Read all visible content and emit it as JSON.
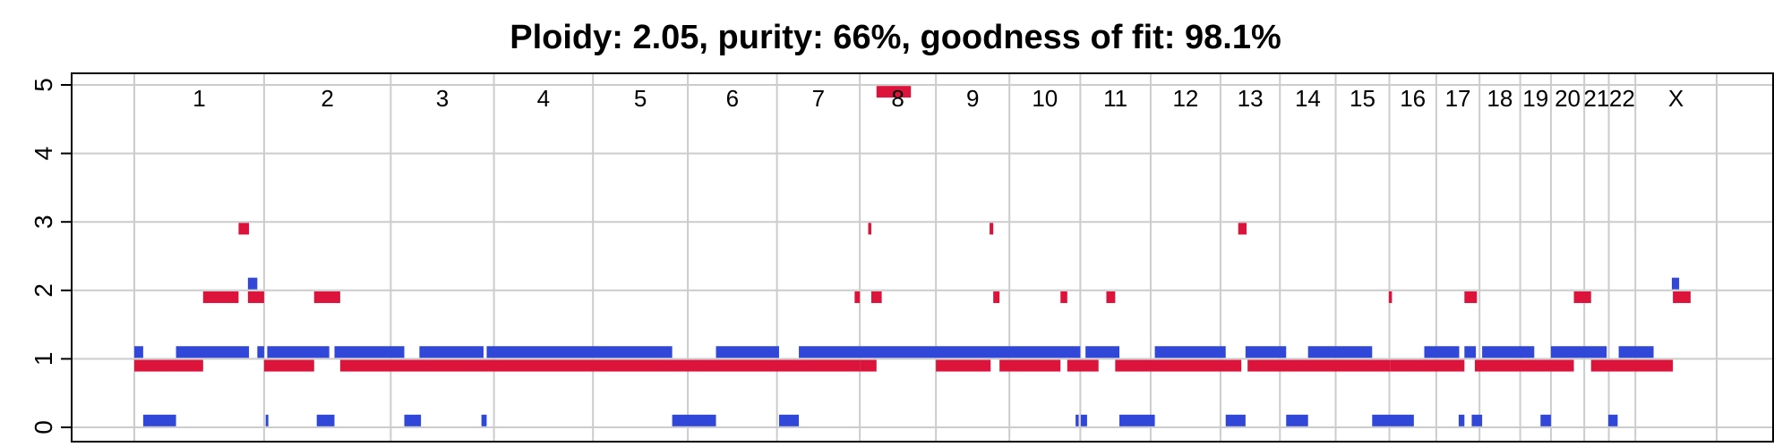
{
  "chart_data": {
    "type": "segment",
    "title": "Ploidy: 2.05, purity: 66%, goodness of fit: 98.1%",
    "ylim": [
      0,
      5
    ],
    "yticks": [
      "0",
      "1",
      "2",
      "3",
      "4",
      "5"
    ],
    "grid": true,
    "chromosomes": [
      {
        "label": "1",
        "start": 0,
        "end": 249
      },
      {
        "label": "2",
        "start": 249,
        "end": 492
      },
      {
        "label": "3",
        "start": 492,
        "end": 690
      },
      {
        "label": "4",
        "start": 690,
        "end": 880
      },
      {
        "label": "5",
        "start": 880,
        "end": 1062
      },
      {
        "label": "6",
        "start": 1062,
        "end": 1233
      },
      {
        "label": "7",
        "start": 1233,
        "end": 1392
      },
      {
        "label": "8",
        "start": 1392,
        "end": 1538
      },
      {
        "label": "9",
        "start": 1538,
        "end": 1679
      },
      {
        "label": "10",
        "start": 1679,
        "end": 1815
      },
      {
        "label": "11",
        "start": 1815,
        "end": 1950
      },
      {
        "label": "12",
        "start": 1950,
        "end": 2084
      },
      {
        "label": "13",
        "start": 2084,
        "end": 2198
      },
      {
        "label": "14",
        "start": 2198,
        "end": 2305
      },
      {
        "label": "15",
        "start": 2305,
        "end": 2408
      },
      {
        "label": "16",
        "start": 2408,
        "end": 2498
      },
      {
        "label": "17",
        "start": 2498,
        "end": 2581
      },
      {
        "label": "18",
        "start": 2581,
        "end": 2659
      },
      {
        "label": "19",
        "start": 2659,
        "end": 2718
      },
      {
        "label": "20",
        "start": 2718,
        "end": 2782
      },
      {
        "label": "21",
        "start": 2782,
        "end": 2829
      },
      {
        "label": "22",
        "start": 2829,
        "end": 2880
      },
      {
        "label": "X",
        "start": 2880,
        "end": 3036
      }
    ],
    "series": [
      {
        "color": "#dc143c",
        "segments": [
          [
            0,
            132,
            0.9
          ],
          [
            132,
            200,
            1.9
          ],
          [
            200,
            220,
            2.9
          ],
          [
            218,
            249,
            1.9
          ],
          [
            249,
            345,
            0.9
          ],
          [
            345,
            395,
            1.9
          ],
          [
            395,
            1392,
            0.9
          ],
          [
            1382,
            1392,
            1.9
          ],
          [
            1392,
            1424,
            0.9
          ],
          [
            1408,
            1414,
            2.9
          ],
          [
            1414,
            1434,
            1.9
          ],
          [
            1424,
            1490,
            4.9
          ],
          [
            1538,
            1643,
            0.9
          ],
          [
            1641,
            1648,
            2.9
          ],
          [
            1648,
            1660,
            1.9
          ],
          [
            1660,
            1777,
            0.9
          ],
          [
            1777,
            1790,
            1.9
          ],
          [
            1790,
            1850,
            0.9
          ],
          [
            1865,
            1882,
            1.9
          ],
          [
            1882,
            2124,
            0.9
          ],
          [
            2118,
            2134,
            2.9
          ],
          [
            2136,
            2410,
            0.9
          ],
          [
            2407,
            2413,
            1.9
          ],
          [
            2410,
            2552,
            0.9
          ],
          [
            2552,
            2576,
            1.9
          ],
          [
            2572,
            2762,
            0.9
          ],
          [
            2762,
            2795,
            1.9
          ],
          [
            2795,
            2952,
            0.9
          ],
          [
            2952,
            2986,
            1.9
          ]
        ]
      },
      {
        "color": "#3047d8",
        "segments": [
          [
            0,
            17,
            1.1
          ],
          [
            17,
            80,
            0.1
          ],
          [
            80,
            220,
            1.1
          ],
          [
            218,
            236,
            2.1
          ],
          [
            236,
            249,
            1.1
          ],
          [
            252,
            255,
            0.1
          ],
          [
            255,
            374,
            1.1
          ],
          [
            350,
            384,
            0.1
          ],
          [
            384,
            518,
            1.1
          ],
          [
            518,
            550,
            0.1
          ],
          [
            547,
            670,
            1.1
          ],
          [
            666,
            676,
            0.1
          ],
          [
            676,
            1032,
            1.1
          ],
          [
            1032,
            1116,
            0.1
          ],
          [
            1116,
            1237,
            1.1
          ],
          [
            1237,
            1275,
            0.1
          ],
          [
            1275,
            1815,
            1.1
          ],
          [
            1806,
            1812,
            0.1
          ],
          [
            1816,
            1828,
            0.1
          ],
          [
            1825,
            1890,
            1.1
          ],
          [
            1890,
            1958,
            0.1
          ],
          [
            1958,
            2094,
            1.1
          ],
          [
            2094,
            2132,
            0.1
          ],
          [
            2132,
            2210,
            1.1
          ],
          [
            2210,
            2252,
            0.1
          ],
          [
            2252,
            2375,
            1.1
          ],
          [
            2375,
            2455,
            0.1
          ],
          [
            2475,
            2542,
            1.1
          ],
          [
            2541,
            2552,
            0.1
          ],
          [
            2552,
            2574,
            1.1
          ],
          [
            2566,
            2586,
            0.1
          ],
          [
            2586,
            2686,
            1.1
          ],
          [
            2698,
            2718,
            0.1
          ],
          [
            2718,
            2825,
            1.1
          ],
          [
            2828,
            2846,
            0.1
          ],
          [
            2848,
            2915,
            1.1
          ],
          [
            2950,
            2964,
            2.1
          ]
        ]
      }
    ]
  }
}
